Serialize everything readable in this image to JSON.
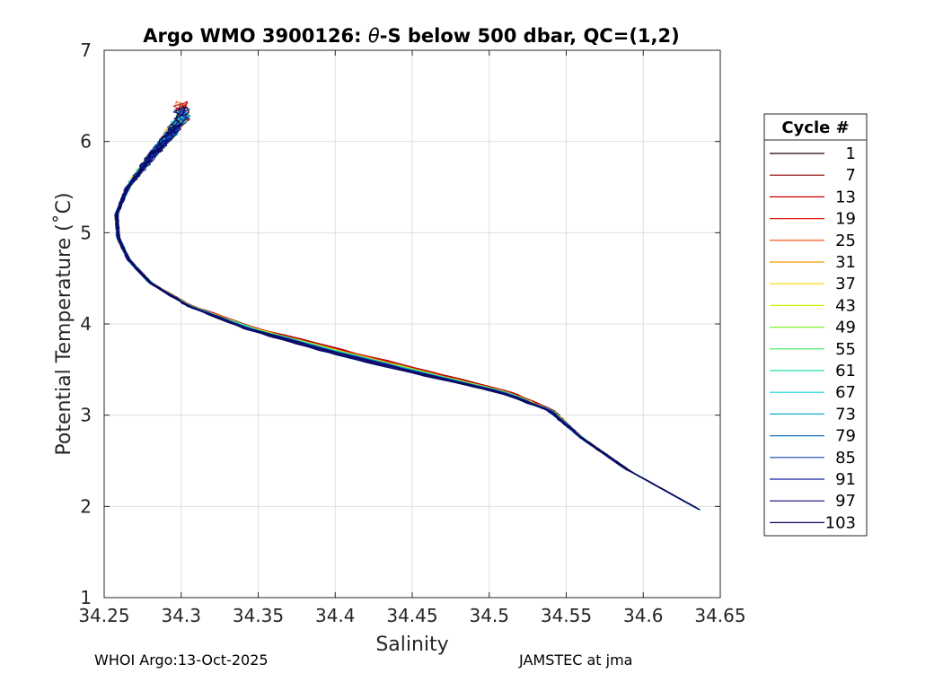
{
  "chart_data": {
    "type": "line",
    "title_prefix": "Argo WMO 3900126: ",
    "title_symbol": "θ",
    "title_suffix": "-S below 500 dbar,  QC=(1,2)",
    "xlabel": "Salinity",
    "ylabel": "Potential Temperature (˚C)",
    "xlim": [
      34.25,
      34.65
    ],
    "ylim": [
      1,
      7
    ],
    "xticks": [
      "34.25",
      "34.3",
      "34.35",
      "34.4",
      "34.45",
      "34.5",
      "34.55",
      "34.6",
      "34.65"
    ],
    "yticks": [
      "1",
      "2",
      "3",
      "4",
      "5",
      "6",
      "7"
    ],
    "grid": true,
    "legend_title": "Cycle #",
    "legend_location": "outside-right",
    "series": [
      {
        "name": "1",
        "color": "#220000"
      },
      {
        "name": "7",
        "color": "#8b0000"
      },
      {
        "name": "13",
        "color": "#c80000"
      },
      {
        "name": "19",
        "color": "#e41a0a"
      },
      {
        "name": "25",
        "color": "#f04a00"
      },
      {
        "name": "31",
        "color": "#f59a00"
      },
      {
        "name": "37",
        "color": "#f0d800"
      },
      {
        "name": "43",
        "color": "#d0f000"
      },
      {
        "name": "49",
        "color": "#80f030"
      },
      {
        "name": "55",
        "color": "#40e860"
      },
      {
        "name": "61",
        "color": "#20e0b0"
      },
      {
        "name": "67",
        "color": "#10d0d8"
      },
      {
        "name": "73",
        "color": "#10a8d0"
      },
      {
        "name": "79",
        "color": "#1070c0"
      },
      {
        "name": "85",
        "color": "#1040b0"
      },
      {
        "name": "91",
        "color": "#1020a0"
      },
      {
        "name": "97",
        "color": "#100c80"
      },
      {
        "name": "103",
        "color": "#0a0a60"
      }
    ],
    "base_profile": [
      {
        "s": 34.2985,
        "t": 6.25
      },
      {
        "s": 34.29,
        "t": 6.05
      },
      {
        "s": 34.278,
        "t": 5.8
      },
      {
        "s": 34.265,
        "t": 5.5
      },
      {
        "s": 34.258,
        "t": 5.2
      },
      {
        "s": 34.259,
        "t": 4.95
      },
      {
        "s": 34.266,
        "t": 4.7
      },
      {
        "s": 34.28,
        "t": 4.45
      },
      {
        "s": 34.305,
        "t": 4.2
      },
      {
        "s": 34.345,
        "t": 3.95
      },
      {
        "s": 34.4,
        "t": 3.7
      },
      {
        "s": 34.46,
        "t": 3.45
      },
      {
        "s": 34.51,
        "t": 3.25
      },
      {
        "s": 34.54,
        "t": 3.05
      },
      {
        "s": 34.56,
        "t": 2.75
      },
      {
        "s": 34.59,
        "t": 2.4
      },
      {
        "s": 34.637,
        "t": 1.96
      }
    ]
  },
  "footer": {
    "left": "WHOI Argo:13-Oct-2025",
    "right": "JAMSTEC at jma"
  }
}
